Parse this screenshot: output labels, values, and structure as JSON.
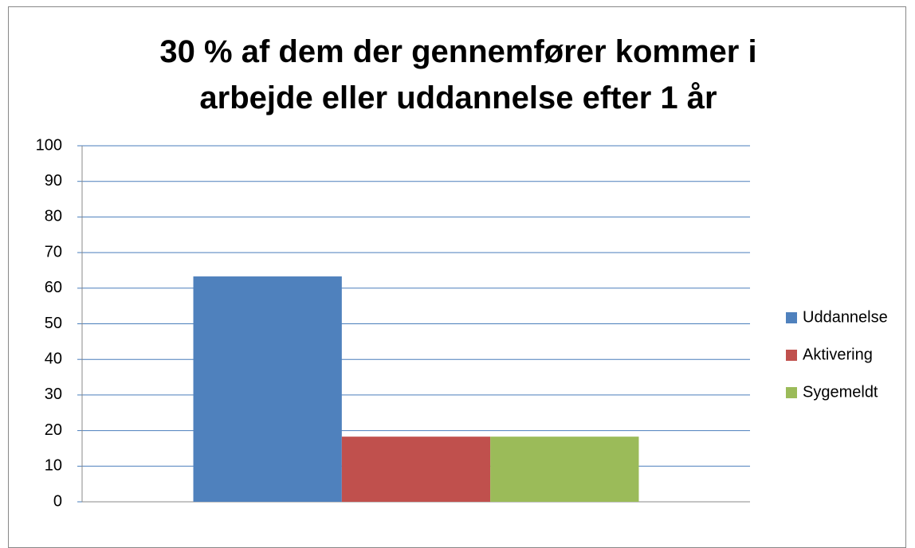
{
  "chart_data": {
    "type": "bar",
    "title": "30 % af dem der gennemfører kommer i arbejde eller uddannelse efter 1 år",
    "categories": [
      null
    ],
    "series": [
      {
        "name": "Uddannelse",
        "color": "#4f81bd",
        "values": [
          63.3
        ]
      },
      {
        "name": "Aktivering",
        "color": "#c0504d",
        "values": [
          18.3
        ]
      },
      {
        "name": "Sygemeldt",
        "color": "#9bbb59",
        "values": [
          18.3
        ]
      }
    ],
    "ylim": [
      0,
      100
    ],
    "yticks": [
      0,
      10,
      20,
      30,
      40,
      50,
      60,
      70,
      80,
      90,
      100
    ],
    "grid": true,
    "legend": "right"
  }
}
